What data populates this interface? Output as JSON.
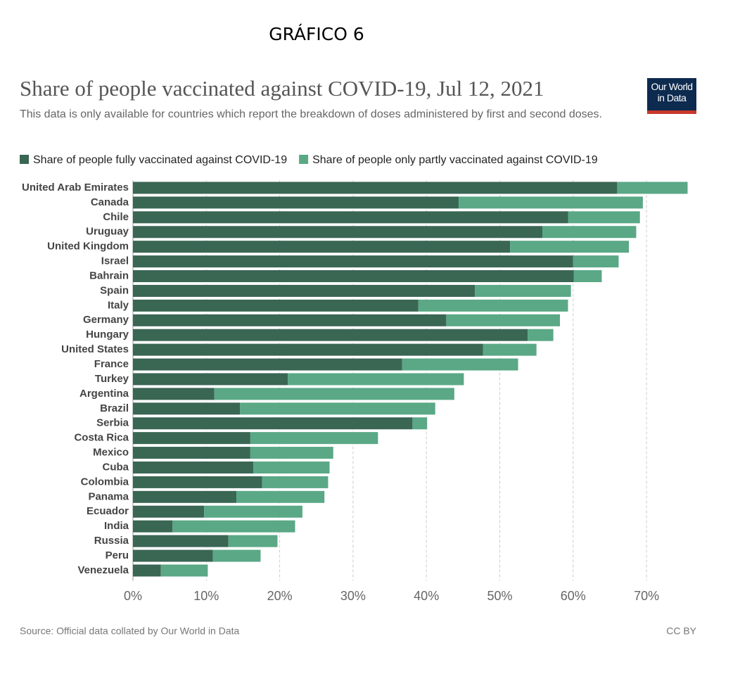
{
  "heading": "GRÁFICO 6",
  "logo_text": [
    "Our World",
    "in Data"
  ],
  "chart_data": {
    "type": "stacked-barh",
    "title": "Share of people vaccinated against COVID-19, Jul 12, 2021",
    "subtitle": "This data is only available for countries which report the breakdown of doses administered by first and second doses.",
    "source": "Source: Official data collated by Our World in Data",
    "license": "CC BY",
    "categories": [
      "United Arab Emirates",
      "Canada",
      "Chile",
      "Uruguay",
      "United Kingdom",
      "Israel",
      "Bahrain",
      "Spain",
      "Italy",
      "Germany",
      "Hungary",
      "United States",
      "France",
      "Turkey",
      "Argentina",
      "Brazil",
      "Serbia",
      "Costa Rica",
      "Mexico",
      "Cuba",
      "Colombia",
      "Panama",
      "Ecuador",
      "India",
      "Russia",
      "Peru",
      "Venezuela"
    ],
    "series": [
      {
        "name": "Share of people fully vaccinated against COVID-19",
        "color": "#3a6654",
        "values": [
          66.0,
          44.4,
          59.3,
          55.8,
          51.4,
          60.0,
          60.1,
          46.6,
          38.9,
          42.7,
          53.8,
          47.7,
          36.7,
          21.1,
          11.1,
          14.6,
          38.1,
          16.0,
          16.0,
          16.4,
          17.6,
          14.1,
          9.7,
          5.4,
          13.0,
          10.9,
          3.8
        ]
      },
      {
        "name": "Share of people only partly vaccinated against COVID-19",
        "color": "#5aa886",
        "values": [
          9.6,
          25.1,
          9.8,
          12.8,
          16.2,
          6.2,
          3.8,
          13.1,
          20.4,
          15.5,
          3.5,
          7.3,
          15.8,
          24.0,
          32.7,
          26.6,
          2.0,
          17.4,
          11.3,
          10.4,
          9.0,
          12.0,
          13.4,
          16.7,
          6.7,
          6.5,
          6.4
        ]
      }
    ],
    "xlim": [
      0,
      76
    ],
    "xticks": [
      {
        "value": 0,
        "label": "0%"
      },
      {
        "value": 10,
        "label": "10%"
      },
      {
        "value": 20,
        "label": "20%"
      },
      {
        "value": 30,
        "label": "30%"
      },
      {
        "value": 40,
        "label": "40%"
      },
      {
        "value": 50,
        "label": "50%"
      },
      {
        "value": 60,
        "label": "60%"
      },
      {
        "value": 70,
        "label": "70%"
      }
    ],
    "grid": true,
    "legend": "top-left"
  }
}
